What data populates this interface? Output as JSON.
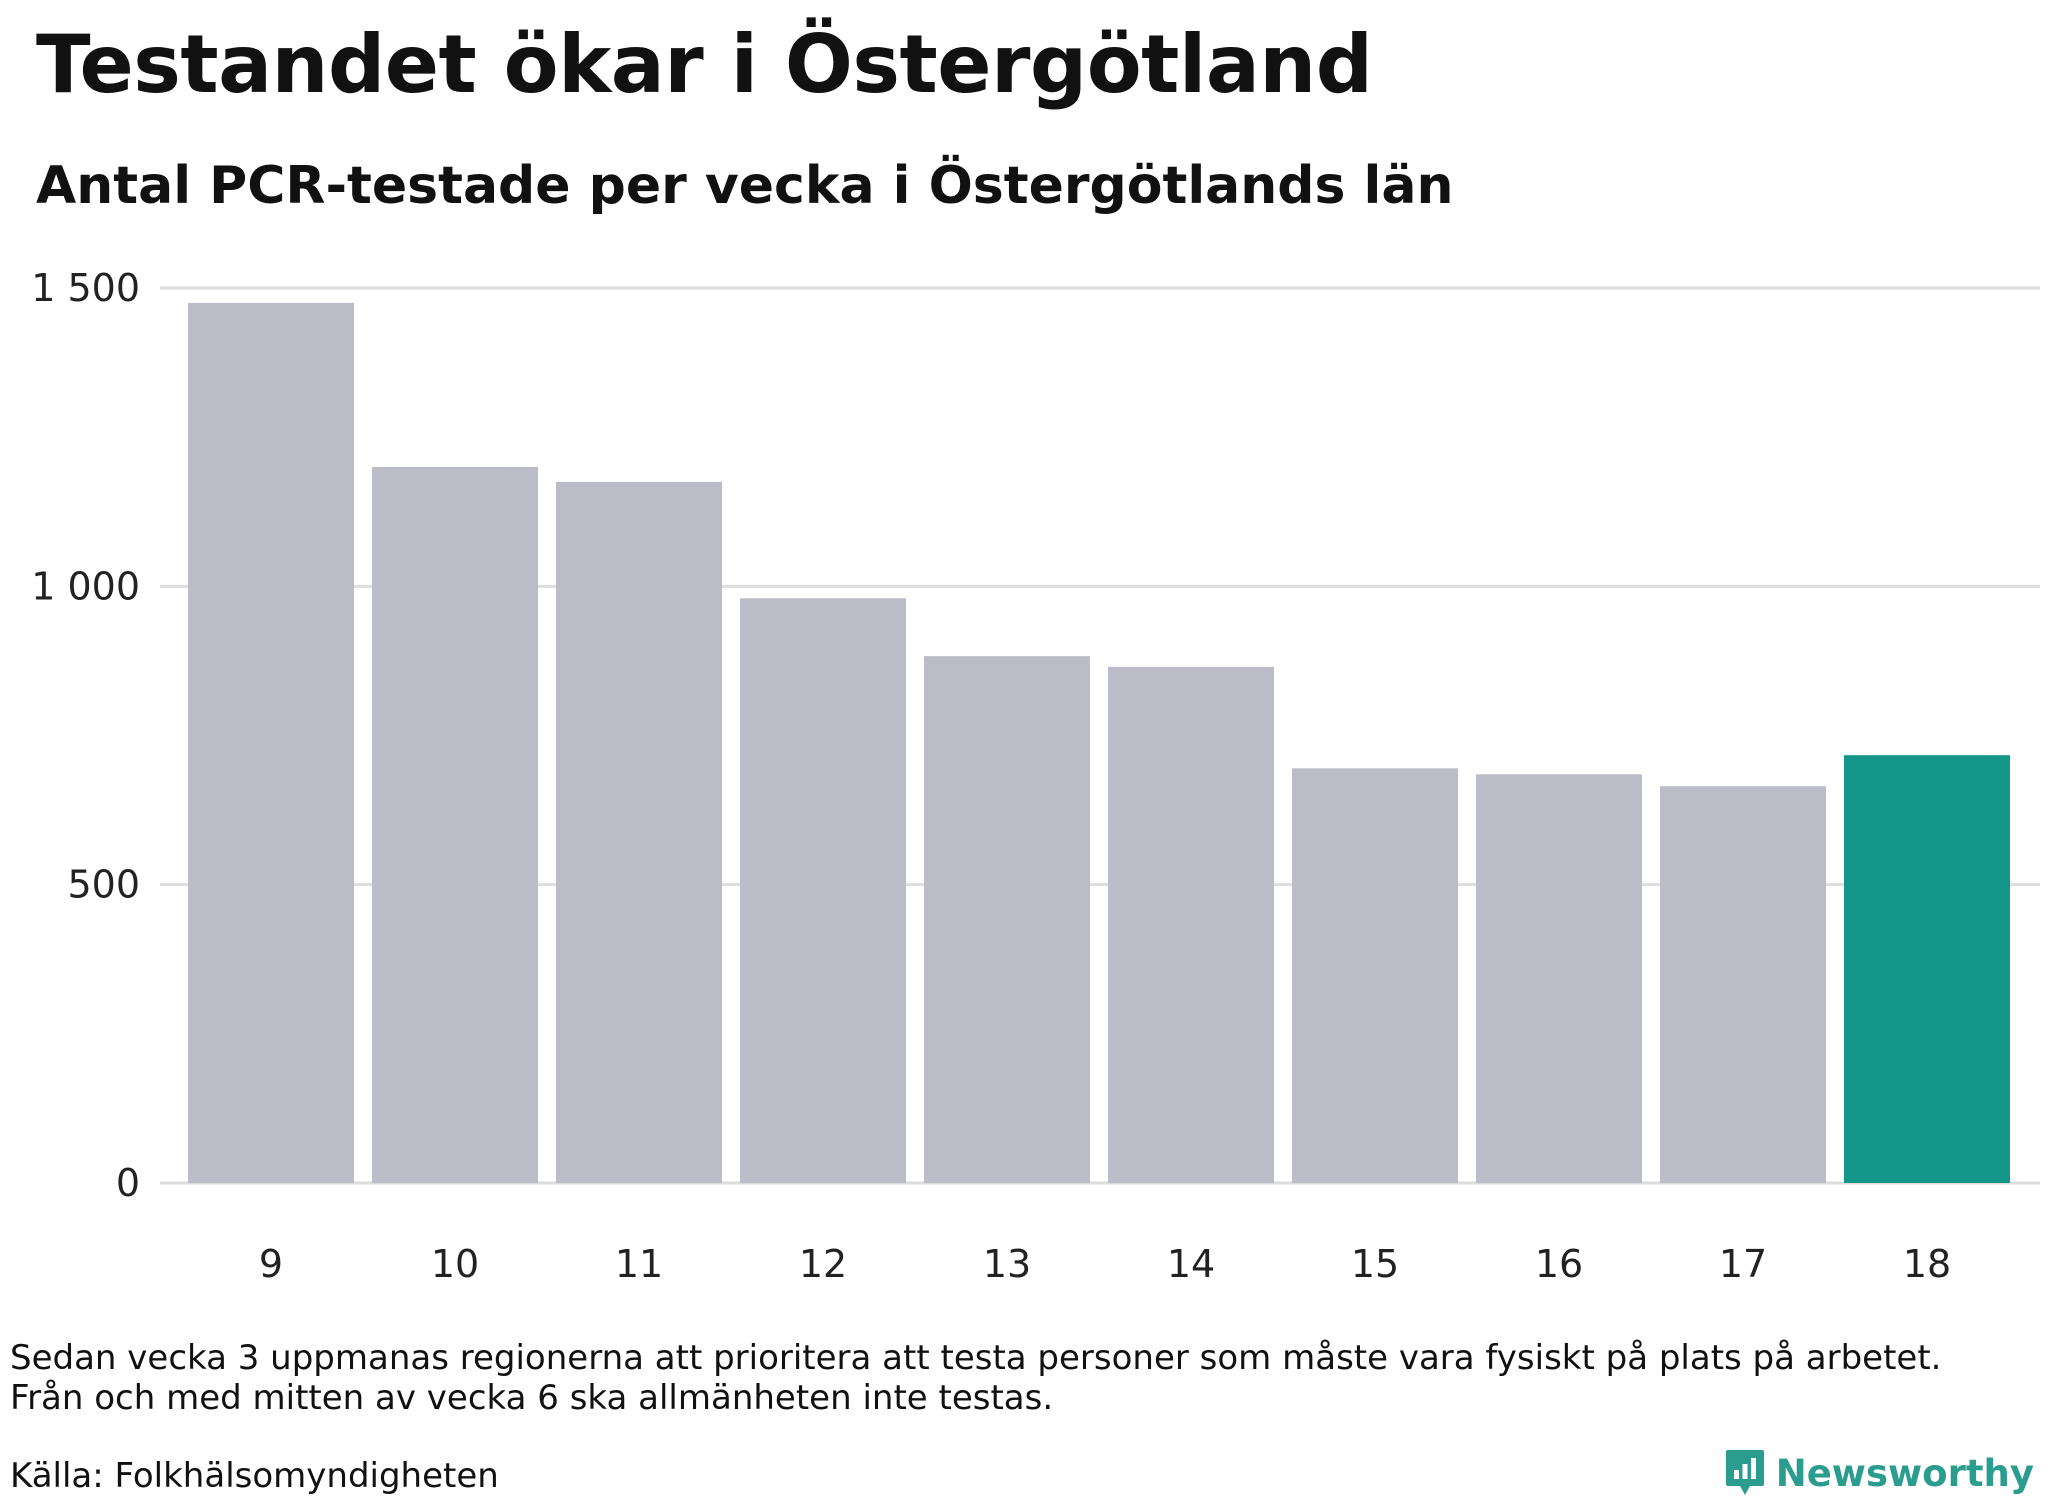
{
  "title": "Testandet ökar i Östergötland",
  "subtitle": "Antal PCR-testade per vecka i Östergötlands län",
  "notes": [
    "Sedan vecka 3 uppmanas regionerna att prioritera att testa personer som måste vara fysiskt på plats på arbetet.",
    "Från och med mitten av vecka 6 ska allmänheten inte testas."
  ],
  "source": "Källa: Folkhälsomyndigheten",
  "brand": {
    "name": "Newsworthy",
    "icon": "newsworthy-logo-icon",
    "color": "#2a9d8f"
  },
  "chart_data": {
    "type": "bar",
    "categories": [
      "9",
      "10",
      "11",
      "12",
      "13",
      "14",
      "15",
      "16",
      "17",
      "18"
    ],
    "values": [
      1475,
      1200,
      1175,
      980,
      883,
      865,
      695,
      685,
      665,
      717
    ],
    "ylim": [
      0,
      1500
    ],
    "yticks": [
      0,
      500,
      1000,
      1500
    ],
    "ytick_labels": [
      "0",
      "500",
      "1 000",
      "1 500"
    ],
    "grid": true,
    "bar_color": "#bcbbc8",
    "highlight_color": "#15968a",
    "highlight_index": 9
  }
}
